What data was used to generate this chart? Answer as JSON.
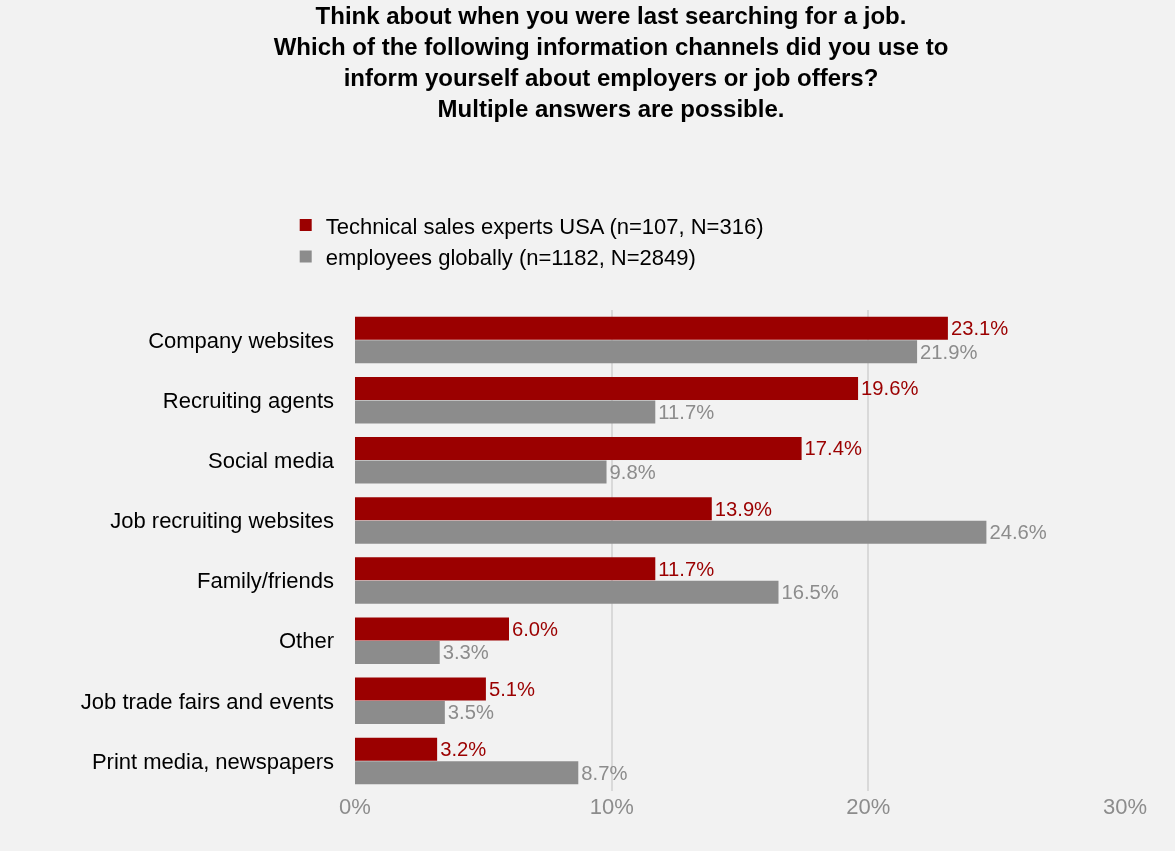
{
  "chart_data": {
    "type": "bar",
    "orientation": "horizontal",
    "title": "Think about when you were last searching for a job.\nWhich of the following information channels did you use to\ninform yourself about employers or job offers?\nMultiple answers are possible.",
    "categories": [
      "Company websites",
      "Recruiting agents",
      "Social media",
      "Job recruiting websites",
      "Family/friends",
      "Other",
      "Job trade fairs and events",
      "Print media, newspapers"
    ],
    "series": [
      {
        "name": "Technical sales experts USA (n=107, N=316)",
        "color": "#9b0000",
        "values": [
          23.1,
          19.6,
          17.4,
          13.9,
          11.7,
          6.0,
          5.1,
          3.2
        ],
        "value_labels": [
          "23.1%",
          "19.6%",
          "17.4%",
          "13.9%",
          "11.7%",
          "6.0%",
          "5.1%",
          "3.2%"
        ]
      },
      {
        "name": "employees globally (n=1182, N=2849)",
        "color": "#8c8c8c",
        "values": [
          21.9,
          11.7,
          9.8,
          24.6,
          16.5,
          3.3,
          3.5,
          8.7
        ],
        "value_labels": [
          "21.9%",
          "11.7%",
          "9.8%",
          "24.6%",
          "16.5%",
          "3.3%",
          "3.5%",
          "8.7%"
        ]
      }
    ],
    "xlim": [
      0,
      30
    ],
    "xticks": [
      {
        "value": 0,
        "label": "0%"
      },
      {
        "value": 10,
        "label": "10%"
      },
      {
        "value": 20,
        "label": "20%"
      },
      {
        "value": 30,
        "label": "30%"
      }
    ],
    "grid": "x",
    "legend": "top"
  }
}
